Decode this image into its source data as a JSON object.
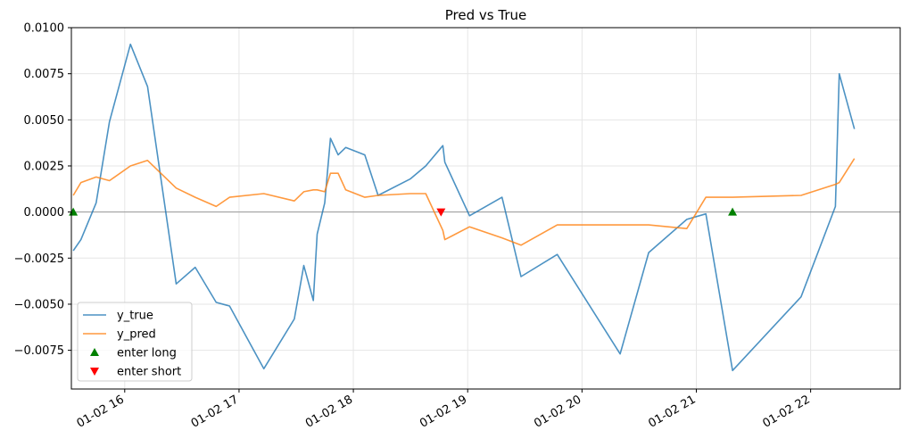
{
  "chart_data": {
    "type": "line",
    "title": "Pred vs True",
    "xlabel": "",
    "ylabel": "",
    "x_unit": "hours (date-time axis, 01-02)",
    "xlim": [
      "01-02 15:32",
      "01-02 22:47"
    ],
    "ylim": [
      -0.0096,
      0.01
    ],
    "grid": true,
    "zero_line": true,
    "legend_position": "lower-left",
    "x_ticks": [
      {
        "value": "01-02 16:00",
        "label": "01-02 16"
      },
      {
        "value": "01-02 17:00",
        "label": "01-02 17"
      },
      {
        "value": "01-02 18:00",
        "label": "01-02 18"
      },
      {
        "value": "01-02 19:00",
        "label": "01-02 19"
      },
      {
        "value": "01-02 20:00",
        "label": "01-02 20"
      },
      {
        "value": "01-02 21:00",
        "label": "01-02 21"
      },
      {
        "value": "01-02 22:00",
        "label": "01-02 22"
      }
    ],
    "y_ticks": [
      {
        "value": 0.01,
        "label": "0.0100"
      },
      {
        "value": 0.0075,
        "label": "0.0075"
      },
      {
        "value": 0.005,
        "label": "0.0050"
      },
      {
        "value": 0.0025,
        "label": "0.0025"
      },
      {
        "value": 0.0,
        "label": "0.0000"
      },
      {
        "value": -0.0025,
        "label": "−0.0025"
      },
      {
        "value": -0.005,
        "label": "−0.0050"
      },
      {
        "value": -0.0075,
        "label": "−0.0075"
      }
    ],
    "series": [
      {
        "name": "y_true",
        "color": "#1f77b4",
        "x": [
          "01-02 15:33",
          "01-02 15:37",
          "01-02 15:45",
          "01-02 15:52",
          "01-02 16:03",
          "01-02 16:12",
          "01-02 16:27",
          "01-02 16:37",
          "01-02 16:48",
          "01-02 16:55",
          "01-02 17:13",
          "01-02 17:29",
          "01-02 17:34",
          "01-02 17:39",
          "01-02 17:41",
          "01-02 17:45",
          "01-02 17:48",
          "01-02 17:52",
          "01-02 17:56",
          "01-02 18:06",
          "01-02 18:13",
          "01-02 18:30",
          "01-02 18:38",
          "01-02 18:47",
          "01-02 18:48",
          "01-02 19:01",
          "01-02 19:18",
          "01-02 19:28",
          "01-02 19:47",
          "01-02 20:20",
          "01-02 20:35",
          "01-02 20:55",
          "01-02 21:05",
          "01-02 21:19",
          "01-02 21:55",
          "01-02 22:13",
          "01-02 22:15",
          "01-02 22:23"
        ],
        "y": [
          -0.0021,
          -0.0015,
          0.0005,
          0.0049,
          0.0091,
          0.0068,
          -0.0039,
          -0.003,
          -0.0049,
          -0.0051,
          -0.0085,
          -0.0058,
          -0.0029,
          -0.0048,
          -0.0012,
          0.0005,
          0.004,
          0.0031,
          0.0035,
          0.0031,
          0.0009,
          0.0018,
          0.0025,
          0.0036,
          0.0027,
          -0.0002,
          0.0008,
          -0.0035,
          -0.0023,
          -0.0077,
          -0.0022,
          -0.0004,
          -0.0001,
          -0.0086,
          -0.0046,
          0.0003,
          0.0075,
          0.0045
        ]
      },
      {
        "name": "y_pred",
        "color": "#ff7f0e",
        "x": [
          "01-02 15:33",
          "01-02 15:37",
          "01-02 15:45",
          "01-02 15:52",
          "01-02 16:03",
          "01-02 16:12",
          "01-02 16:27",
          "01-02 16:37",
          "01-02 16:48",
          "01-02 16:55",
          "01-02 17:13",
          "01-02 17:29",
          "01-02 17:34",
          "01-02 17:39",
          "01-02 17:41",
          "01-02 17:45",
          "01-02 17:48",
          "01-02 17:52",
          "01-02 17:56",
          "01-02 18:06",
          "01-02 18:13",
          "01-02 18:30",
          "01-02 18:38",
          "01-02 18:47",
          "01-02 18:48",
          "01-02 19:01",
          "01-02 19:18",
          "01-02 19:28",
          "01-02 19:47",
          "01-02 20:20",
          "01-02 20:35",
          "01-02 20:55",
          "01-02 21:05",
          "01-02 21:19",
          "01-02 21:55",
          "01-02 22:13",
          "01-02 22:15",
          "01-02 22:23"
        ],
        "y": [
          0.0009,
          0.0016,
          0.0019,
          0.0017,
          0.0025,
          0.0028,
          0.0013,
          0.0008,
          0.0003,
          0.0008,
          0.001,
          0.0006,
          0.0011,
          0.0012,
          0.0012,
          0.0011,
          0.0021,
          0.0021,
          0.0012,
          0.0008,
          0.0009,
          0.001,
          0.001,
          -0.001,
          -0.0015,
          -0.0008,
          -0.0014,
          -0.0018,
          -0.0007,
          -0.0007,
          -0.0007,
          -0.0009,
          0.0008,
          0.0008,
          0.0009,
          0.0015,
          0.0016,
          0.0029
        ]
      }
    ],
    "markers": [
      {
        "name": "enter long",
        "shape": "triangle-up",
        "color": "#008000",
        "x": [
          "01-02 15:33",
          "01-02 21:19"
        ],
        "y": [
          0.0,
          0.0
        ]
      },
      {
        "name": "enter short",
        "shape": "triangle-down",
        "color": "#ff0000",
        "x": [
          "01-02 18:46"
        ],
        "y": [
          0.0
        ]
      }
    ],
    "legend": [
      "y_true",
      "y_pred",
      "enter long",
      "enter short"
    ]
  }
}
